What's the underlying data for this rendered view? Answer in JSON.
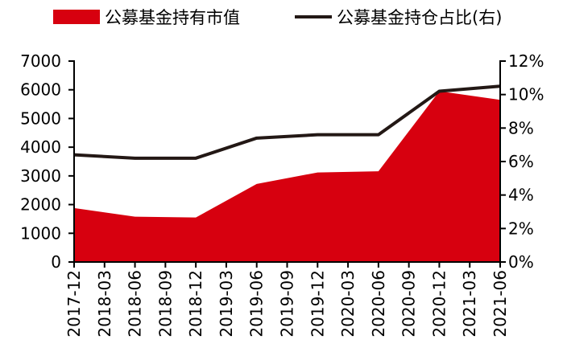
{
  "chart_data": {
    "type": "area",
    "categories": [
      "2017-12",
      "2018-03",
      "2018-06",
      "2018-09",
      "2018-12",
      "2019-03",
      "2019-06",
      "2019-09",
      "2019-12",
      "2020-03",
      "2020-06",
      "2020-09",
      "2020-12",
      "2021-03",
      "2021-06"
    ],
    "series": [
      {
        "name": "公募基金持有市值",
        "type": "area",
        "axis": "left",
        "color": "#d7000f",
        "x": [
          "2017-12",
          "2018-06",
          "2018-12",
          "2019-06",
          "2019-12",
          "2020-06",
          "2020-12",
          "2021-06"
        ],
        "values": [
          1880,
          1580,
          1550,
          2720,
          3120,
          3160,
          5950,
          5650
        ]
      },
      {
        "name": "公募基金持仓占比(右)",
        "type": "line",
        "axis": "right",
        "color": "#231815",
        "x": [
          "2017-12",
          "2018-06",
          "2018-12",
          "2019-06",
          "2019-12",
          "2020-06",
          "2020-12",
          "2021-06"
        ],
        "values": [
          6.4,
          6.2,
          6.2,
          7.4,
          7.6,
          7.6,
          10.2,
          10.5
        ]
      }
    ],
    "y_left": {
      "min": 0,
      "max": 7000,
      "step": 1000,
      "ticks": [
        "0",
        "1000",
        "2000",
        "3000",
        "4000",
        "5000",
        "6000",
        "7000"
      ]
    },
    "y_right": {
      "min": 0,
      "max": 12,
      "step": 2,
      "ticks": [
        "0%",
        "2%",
        "4%",
        "6%",
        "8%",
        "10%",
        "12%"
      ]
    },
    "legend_position": "top",
    "grid": false,
    "title": "",
    "xlabel": "",
    "ylabel": ""
  }
}
